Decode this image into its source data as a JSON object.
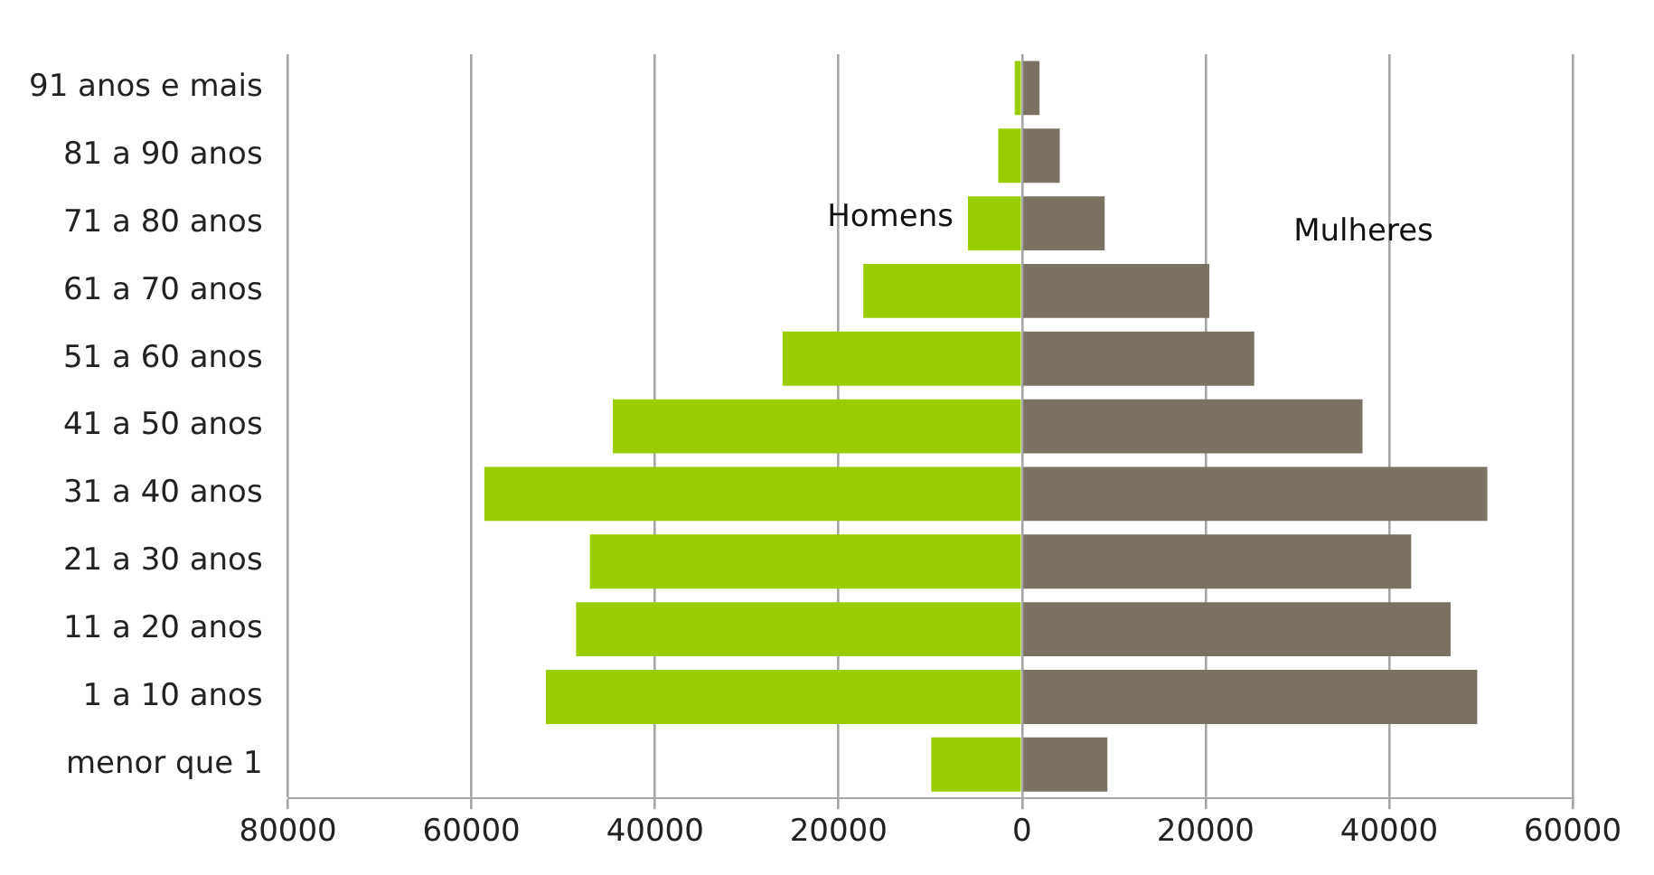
{
  "chart_data": {
    "type": "bar",
    "orientation": "horizontal",
    "stacked": true,
    "categories": [
      "91 anos e mais",
      "81 a 90 anos",
      "71 a 80 anos",
      "61 a 70 anos",
      "51 a 60 anos",
      "41 a 50 anos",
      "31 a 40 anos",
      "21 a 30 anos",
      "11 a 20 anos",
      "1 a 10 anos",
      "menor que 1"
    ],
    "series": [
      {
        "name": "Homens",
        "color": "#9acd00",
        "values": [
          -800,
          -2600,
          -5900,
          -17300,
          -26100,
          -44600,
          -58600,
          -47100,
          -48600,
          -51900,
          -9900
        ]
      },
      {
        "name": "Mulheres",
        "color": "#7b7263",
        "values": [
          1900,
          4100,
          9000,
          20400,
          25300,
          37100,
          50700,
          42400,
          46700,
          49600,
          9300
        ]
      }
    ],
    "xlim": [
      -80000,
      60000
    ],
    "xticks": [
      {
        "value": -80000,
        "label": "80000"
      },
      {
        "value": -60000,
        "label": "60000"
      },
      {
        "value": -40000,
        "label": "40000"
      },
      {
        "value": -20000,
        "label": "20000"
      },
      0,
      20000,
      40000,
      60000
    ],
    "grid": "x",
    "legend": false
  }
}
